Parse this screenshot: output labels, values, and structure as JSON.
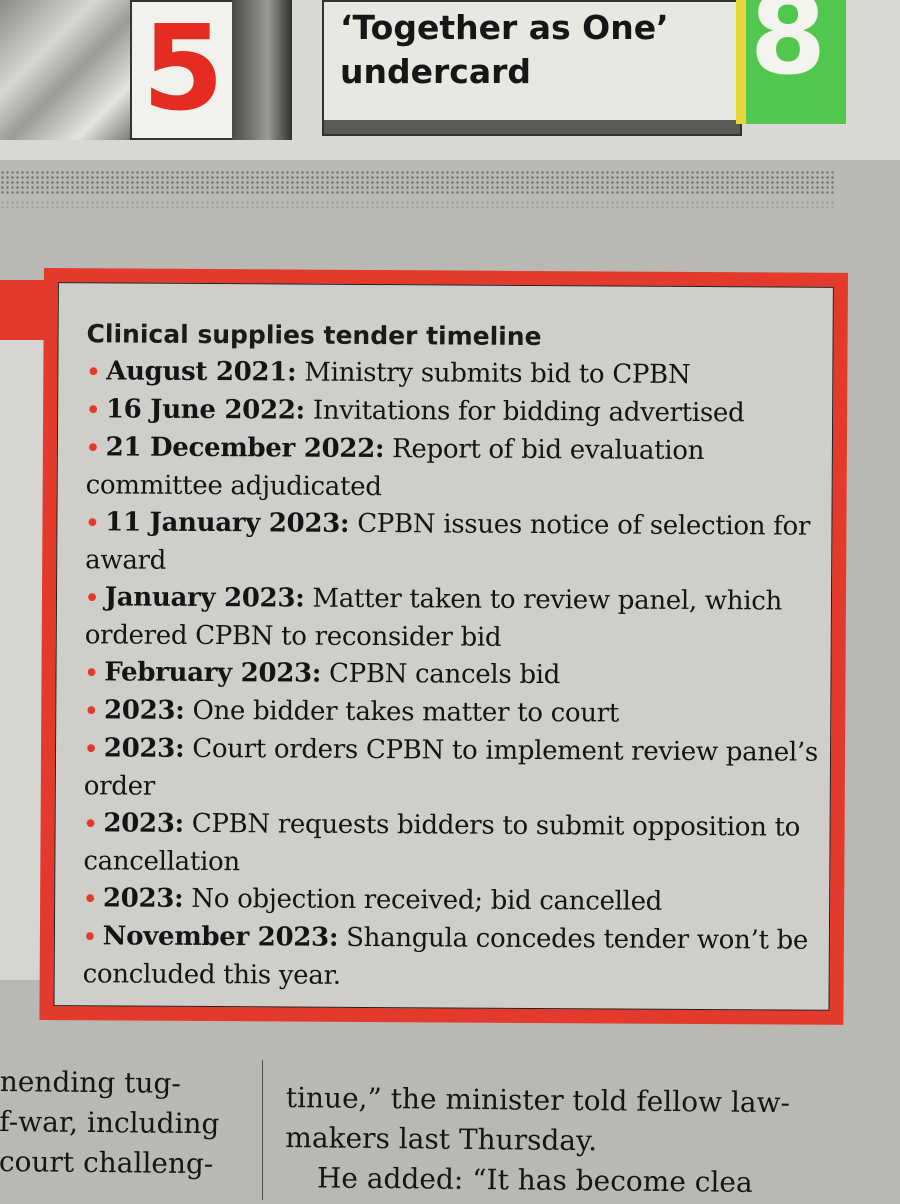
{
  "promo": {
    "left_number": "5",
    "headline": "‘Together as One’ undercard",
    "right_number": "8"
  },
  "timeline": {
    "title": "Clinical supplies tender timeline",
    "bullet": "•",
    "entries": [
      {
        "date": "August 2021:",
        "text": "Ministry submits bid to CPBN"
      },
      {
        "date": "16 June 2022:",
        "text": "Invitations for bidding advertised"
      },
      {
        "date": "21 December 2022:",
        "text": "Report of bid evaluation committee adjudicated"
      },
      {
        "date": "11 January 2023:",
        "text": "CPBN issues notice of selection for award"
      },
      {
        "date": "January 2023:",
        "text": "Matter taken to review panel, which ordered CPBN to reconsider bid"
      },
      {
        "date": "February 2023:",
        "text": "CPBN cancels bid"
      },
      {
        "date": "2023:",
        "text": "One bidder takes matter to court"
      },
      {
        "date": "2023:",
        "text": "Court orders CPBN to implement review panel’s order"
      },
      {
        "date": "2023:",
        "text": "CPBN requests bidders to submit opposition to cancellation"
      },
      {
        "date": "2023:",
        "text": "No objection received; bid cancelled"
      },
      {
        "date": "November 2023:",
        "text": "Shangula concedes tender won’t be concluded this year."
      }
    ]
  },
  "body": {
    "left_column": [
      "nending tug-",
      "f-war, including",
      "court challeng-"
    ],
    "right_column": [
      "tinue,” the minister told fellow law-",
      "makers last Thursday.",
      "He added: “It has become clea"
    ]
  }
}
